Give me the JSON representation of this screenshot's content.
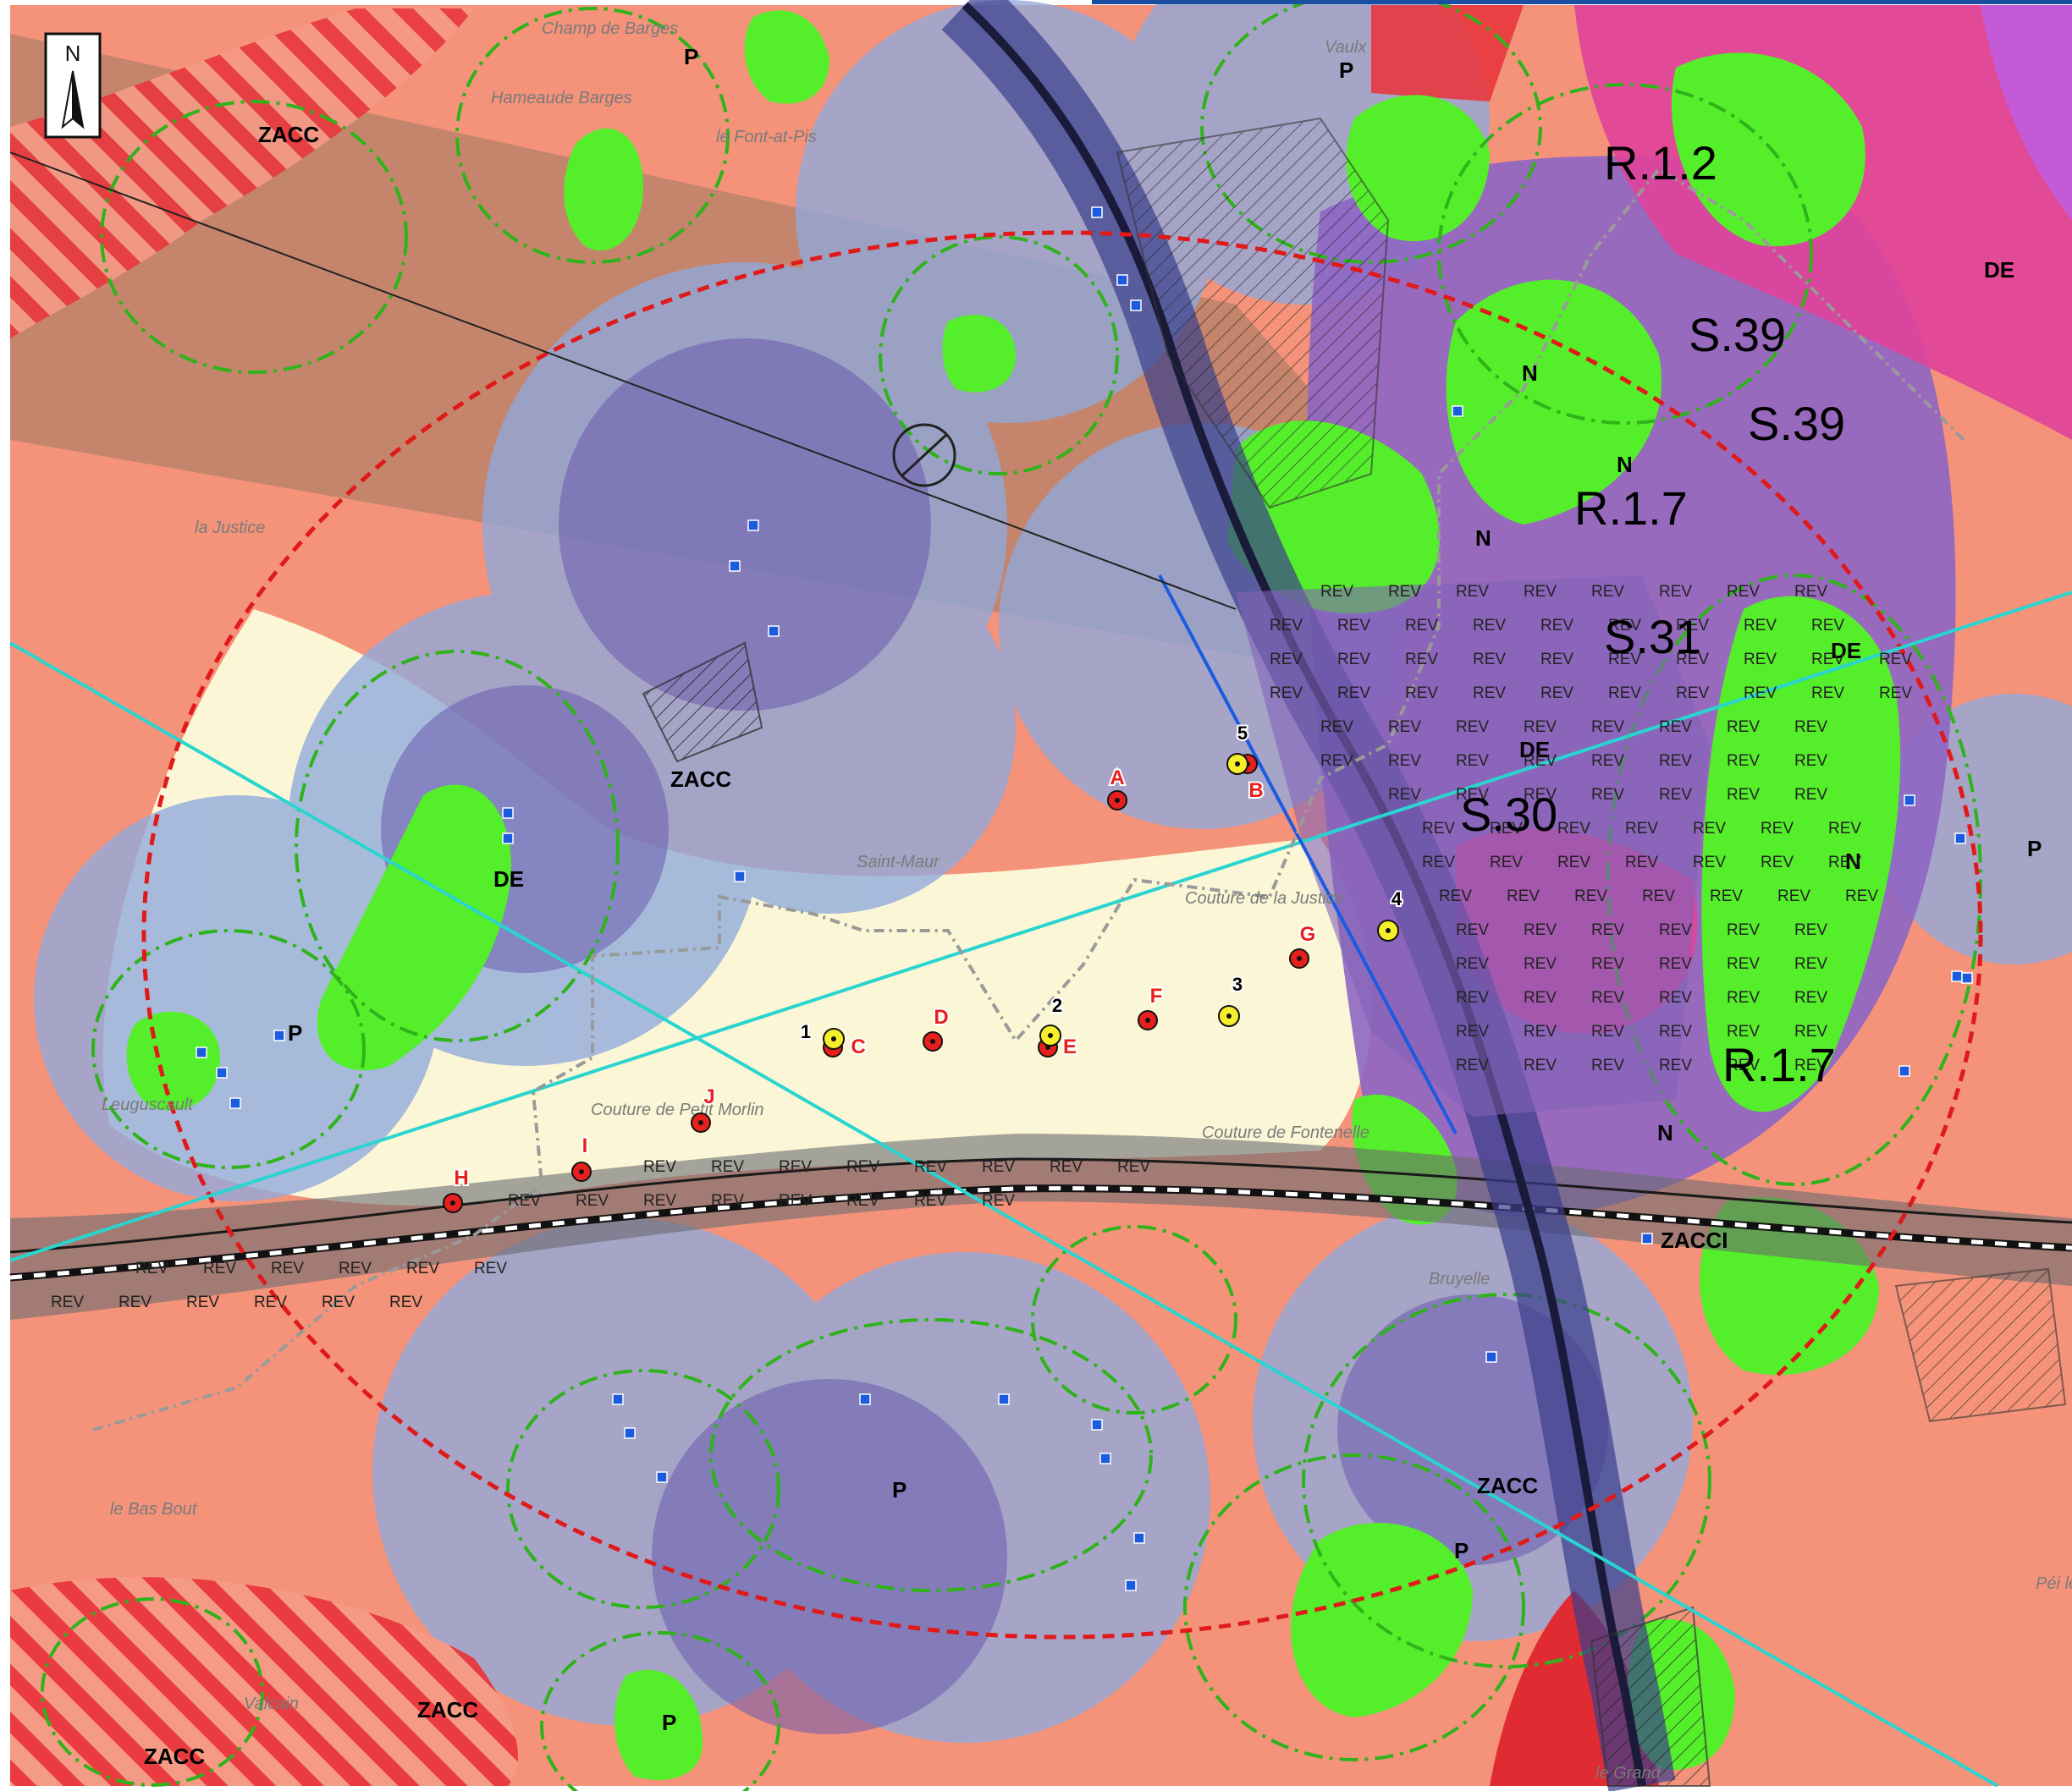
{
  "north_arrow": {
    "label": "N"
  },
  "map_labels": {
    "big": [
      "R.1.2",
      "S.39",
      "S.39",
      "R.1.7",
      "S.31",
      "S.30",
      "R.1.7"
    ],
    "zones": [
      "ZACC",
      "ZACC",
      "ZACC",
      "ZACC",
      "ZACC",
      "ZACCI",
      "DE",
      "DE",
      "DE",
      "DE",
      "N",
      "N",
      "N",
      "N",
      "N",
      "P",
      "P",
      "P",
      "P",
      "P",
      "P",
      "P",
      "REV"
    ],
    "places": [
      "Champ de Barges",
      "Hameaude Barges",
      "le Font-at-Pis",
      "Vaulx",
      "la Justice",
      "Saint-Maur",
      "Couture de la Justice",
      "Couture de Petit Morlin",
      "Couture de Fontenelle",
      "Bruyelle",
      "Leuguscault",
      "le Bas Bout",
      "Valcain",
      "le Grand",
      "Péi lez-"
    ]
  },
  "points_red": [
    "A",
    "B",
    "C",
    "D",
    "E",
    "F",
    "G",
    "H",
    "I",
    "J"
  ],
  "points_yellow": [
    "1",
    "2",
    "3",
    "4",
    "5"
  ],
  "colors": {
    "salmon": "#f4937a",
    "cream": "#fbf7d6",
    "blue_buffer": "#8fa9dc",
    "purple": "#7a66c0",
    "magenta": "#e0439a",
    "green": "#55ee2a",
    "red_dashed_circle": "#e01a1a",
    "cyan_line": "#2ad4d0",
    "blue_line": "#1a5be0"
  }
}
